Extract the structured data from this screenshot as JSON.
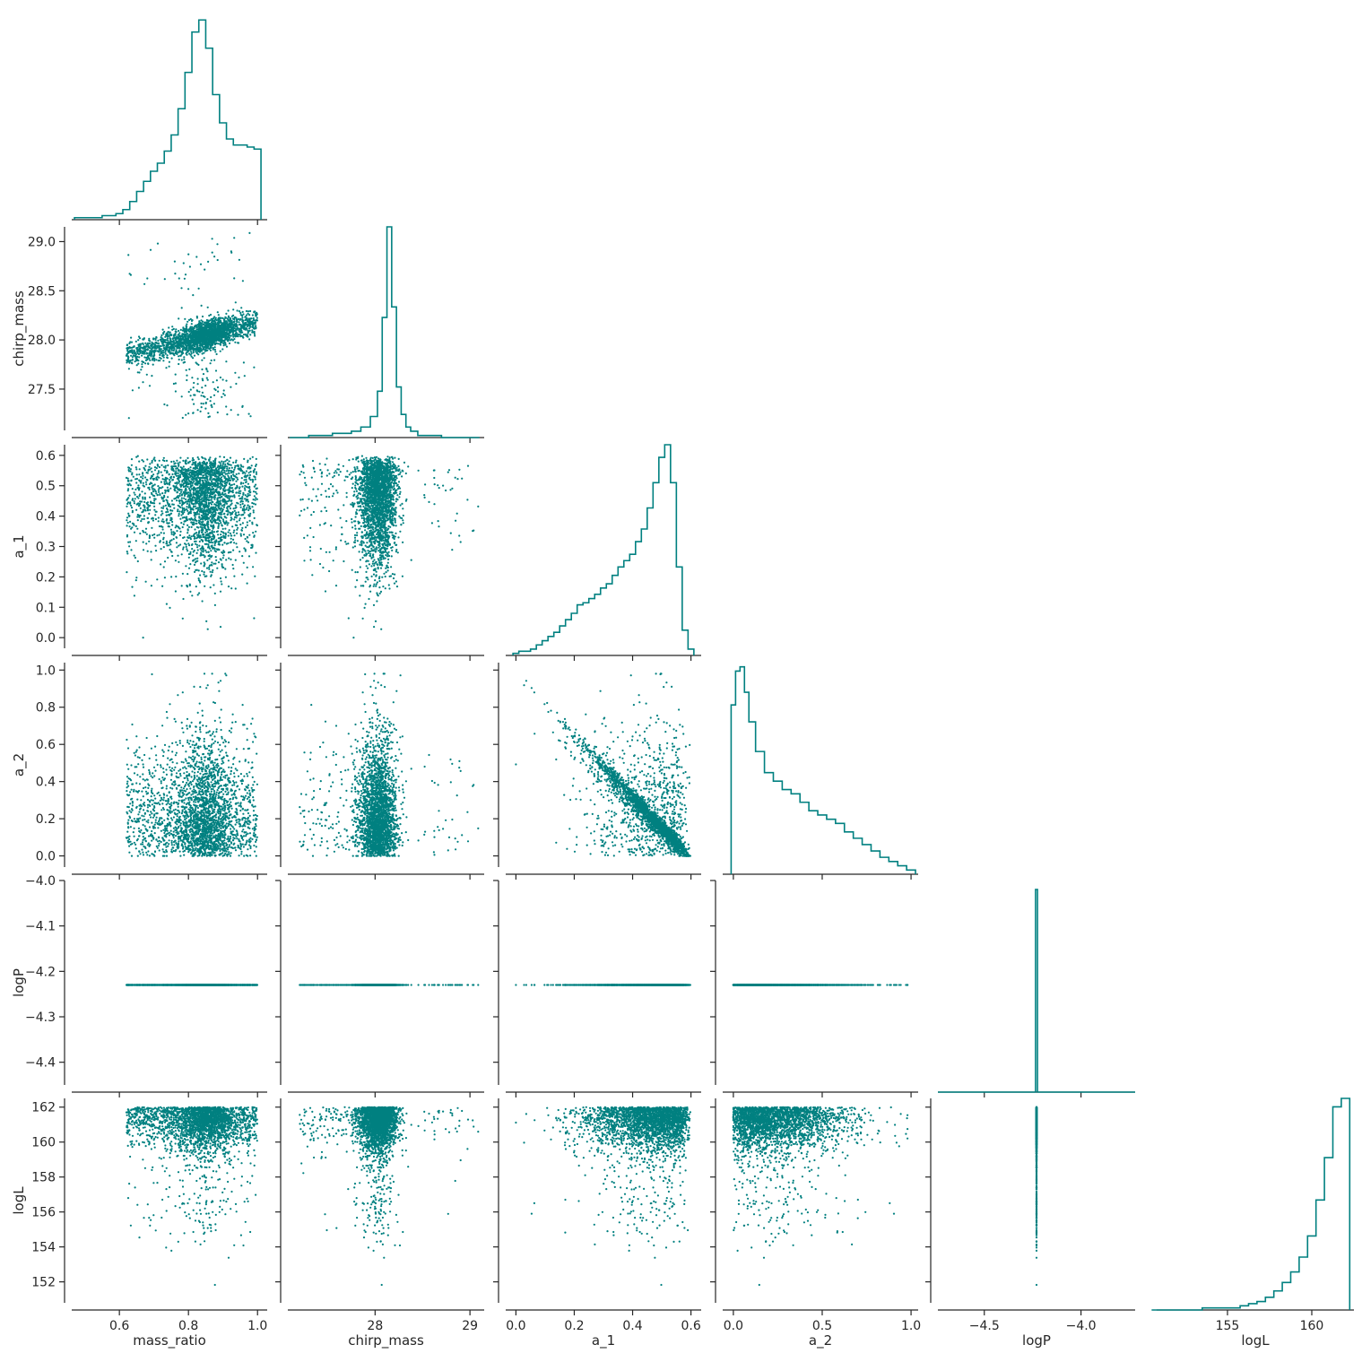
{
  "chart_data": {
    "type": "corner",
    "color": "#008080",
    "variables": [
      "mass_ratio",
      "chirp_mass",
      "a_1",
      "a_2",
      "logP",
      "logL"
    ],
    "ranges": {
      "mass_ratio": [
        0.462,
        1.028
      ],
      "chirp_mass": [
        27.08,
        29.15
      ],
      "a_1": [
        -0.035,
        0.635
      ],
      "a_2": [
        -0.06,
        1.04
      ],
      "logP": [
        -4.74,
        -3.72
      ],
      "logL": [
        150.8,
        162.5
      ]
    },
    "ticks": {
      "mass_ratio": [
        0.6,
        0.8,
        1.0
      ],
      "chirp_mass": [
        28,
        29
      ],
      "a_1": [
        0.0,
        0.2,
        0.4,
        0.6
      ],
      "a_2": [
        0.0,
        0.5,
        1.0
      ],
      "logP": [
        -4.5,
        -4.0
      ],
      "logL": [
        155,
        160
      ]
    },
    "tick_labels": {
      "mass_ratio": [
        "0.6",
        "0.8",
        "1.0"
      ],
      "chirp_mass": [
        "28",
        "29"
      ],
      "a_1": [
        "0.0",
        "0.2",
        "0.4",
        "0.6"
      ],
      "a_2": [
        "0.0",
        "0.5",
        "1.0"
      ],
      "logP": [
        "−4.5",
        "−4.0"
      ],
      "logL": [
        "155",
        "160"
      ]
    },
    "y_ranges": {
      "chirp_mass": [
        27.08,
        29.15
      ],
      "a_1": [
        -0.035,
        0.635
      ],
      "a_2": [
        -0.06,
        1.04
      ],
      "logP": [
        -4.45,
        -4.0
      ],
      "logL": [
        150.8,
        162.5
      ]
    },
    "y_ticks": {
      "chirp_mass": [
        27.5,
        28.0,
        28.5,
        29.0
      ],
      "a_1": [
        0.0,
        0.1,
        0.2,
        0.3,
        0.4,
        0.5,
        0.6
      ],
      "a_2": [
        0.0,
        0.2,
        0.4,
        0.6,
        0.8,
        1.0
      ],
      "logP": [
        -4.4,
        -4.3,
        -4.2,
        -4.1,
        -4.0
      ],
      "logL": [
        152,
        154,
        156,
        158,
        160,
        162
      ]
    },
    "y_tick_labels": {
      "chirp_mass": [
        "27.5",
        "28.0",
        "28.5",
        "29.0"
      ],
      "a_1": [
        "0.0",
        "0.1",
        "0.2",
        "0.3",
        "0.4",
        "0.5",
        "0.6"
      ],
      "a_2": [
        "0.0",
        "0.2",
        "0.4",
        "0.6",
        "0.8",
        "1.0"
      ],
      "logP": [
        "−4.4",
        "−4.3",
        "−4.2",
        "−4.1",
        "−4.0"
      ],
      "logL": [
        "152",
        "154",
        "156",
        "158",
        "160",
        "162"
      ]
    },
    "diagonal": "step histogram",
    "off_diagonal": "scatter",
    "logP_value": -4.23,
    "histograms": {
      "mass_ratio": {
        "peak": 0.85,
        "x": [
          0.48,
          0.5,
          0.52,
          0.54,
          0.56,
          0.58,
          0.6,
          0.62,
          0.64,
          0.66,
          0.68,
          0.7,
          0.72,
          0.74,
          0.76,
          0.78,
          0.8,
          0.82,
          0.84,
          0.86,
          0.88,
          0.9,
          0.92,
          0.94,
          0.96,
          0.98,
          1.0
        ],
        "y": [
          0.01,
          0.01,
          0.01,
          0.01,
          0.02,
          0.02,
          0.03,
          0.05,
          0.09,
          0.14,
          0.19,
          0.24,
          0.28,
          0.34,
          0.42,
          0.55,
          0.73,
          0.93,
          0.99,
          0.85,
          0.62,
          0.48,
          0.4,
          0.37,
          0.37,
          0.36,
          0.35
        ]
      },
      "chirp_mass": {
        "peak": 28.15,
        "x": [
          27.2,
          27.4,
          27.5,
          27.6,
          27.7,
          27.8,
          27.9,
          28.0,
          28.05,
          28.1,
          28.15,
          28.2,
          28.25,
          28.3,
          28.35,
          28.4,
          28.5,
          28.6,
          28.8,
          29.0
        ],
        "y": [
          0.0,
          0.01,
          0.01,
          0.02,
          0.02,
          0.03,
          0.05,
          0.1,
          0.22,
          0.57,
          1.0,
          0.62,
          0.24,
          0.11,
          0.05,
          0.03,
          0.01,
          0.01,
          0.0,
          0.0
        ]
      },
      "a_1": {
        "peak": 0.52,
        "x": [
          0.0,
          0.02,
          0.04,
          0.06,
          0.08,
          0.1,
          0.12,
          0.14,
          0.16,
          0.18,
          0.2,
          0.22,
          0.24,
          0.26,
          0.28,
          0.3,
          0.32,
          0.34,
          0.36,
          0.38,
          0.4,
          0.42,
          0.44,
          0.46,
          0.48,
          0.5,
          0.52,
          0.54,
          0.56,
          0.58,
          0.6
        ],
        "y": [
          0.01,
          0.02,
          0.02,
          0.03,
          0.05,
          0.07,
          0.09,
          0.11,
          0.14,
          0.17,
          0.2,
          0.24,
          0.25,
          0.27,
          0.29,
          0.32,
          0.34,
          0.38,
          0.42,
          0.45,
          0.48,
          0.54,
          0.6,
          0.7,
          0.82,
          0.94,
          1.0,
          0.82,
          0.42,
          0.12,
          0.03
        ]
      },
      "a_2": {
        "peak": 0.05,
        "x": [
          0.0,
          0.025,
          0.05,
          0.075,
          0.1,
          0.15,
          0.2,
          0.25,
          0.3,
          0.35,
          0.4,
          0.45,
          0.5,
          0.55,
          0.6,
          0.65,
          0.7,
          0.75,
          0.8,
          0.85,
          0.9,
          0.95,
          1.0
        ],
        "y": [
          0.8,
          0.96,
          0.98,
          0.86,
          0.72,
          0.58,
          0.48,
          0.44,
          0.4,
          0.38,
          0.34,
          0.3,
          0.28,
          0.26,
          0.24,
          0.2,
          0.17,
          0.14,
          0.11,
          0.08,
          0.06,
          0.04,
          0.02
        ]
      },
      "logP": {
        "peak": -4.23,
        "x": [
          -4.23
        ],
        "y": [
          1.0
        ]
      },
      "logL": {
        "peak": 161.8,
        "x": [
          151,
          152,
          153,
          154,
          155,
          155.5,
          156,
          156.5,
          157,
          157.5,
          158,
          158.5,
          159,
          159.5,
          160,
          160.5,
          161,
          161.5,
          162
        ],
        "y": [
          0.0,
          0.0,
          0.0,
          0.01,
          0.01,
          0.01,
          0.02,
          0.03,
          0.04,
          0.06,
          0.09,
          0.13,
          0.18,
          0.25,
          0.35,
          0.52,
          0.72,
          0.96,
          1.0
        ]
      }
    }
  }
}
